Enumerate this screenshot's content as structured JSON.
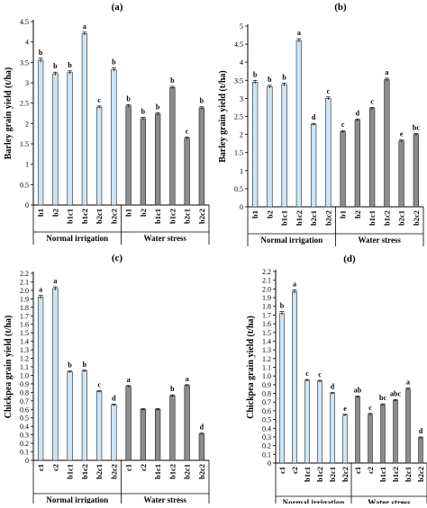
{
  "chart_data": [
    {
      "type": "bar",
      "panel": "(a)",
      "ylabel": "Barley grain yield (t/ha)",
      "ylim": [
        0,
        4.5
      ],
      "yticks": [
        "0",
        "0.5",
        "1",
        "1.5",
        "2",
        "2.5",
        "3",
        "3.5",
        "4",
        "4.5"
      ],
      "categories": [
        "b1",
        "b2",
        "b1c1",
        "b1c2",
        "b2c1",
        "b2c2",
        "b1",
        "b2",
        "b1c1",
        "b1c2",
        "b2c1",
        "b2c2"
      ],
      "values": [
        3.55,
        3.22,
        3.25,
        4.2,
        2.4,
        3.32,
        2.43,
        2.12,
        2.23,
        2.88,
        1.64,
        2.38
      ],
      "errors": [
        0.05,
        0.04,
        0.04,
        0.04,
        0.03,
        0.04,
        0.03,
        0.03,
        0.03,
        0.03,
        0.03,
        0.03
      ],
      "letters": [
        "b",
        "b",
        "b",
        "a",
        "c",
        "b",
        "b",
        "b",
        "b",
        "b",
        "c",
        "b"
      ],
      "groups": [
        "Normal irrigation",
        "Water stress"
      ],
      "colors": {
        "normal": "#cde6f7",
        "stress": "#8c8c8c"
      }
    },
    {
      "type": "bar",
      "panel": "(b)",
      "ylabel": "Barley grain yield (t/ha)",
      "ylim": [
        0,
        5
      ],
      "yticks": [
        "0",
        "0.5",
        "1",
        "1.5",
        "2",
        "2.5",
        "3",
        "3.5",
        "4",
        "4.5",
        "5"
      ],
      "categories": [
        "b1",
        "b2",
        "b1c1",
        "b1c2",
        "b2c1",
        "b2c2",
        "b1",
        "b2",
        "b1c1",
        "b1c2",
        "b2c1",
        "b2c2"
      ],
      "values": [
        3.45,
        3.32,
        3.38,
        4.6,
        2.28,
        3.0,
        2.08,
        2.4,
        2.72,
        3.52,
        1.82,
        2.0
      ],
      "errors": [
        0.05,
        0.04,
        0.04,
        0.05,
        0.03,
        0.04,
        0.03,
        0.03,
        0.03,
        0.04,
        0.03,
        0.03
      ],
      "letters": [
        "b",
        "b",
        "b",
        "a",
        "d",
        "c",
        "c",
        "d",
        "c",
        "a",
        "e",
        "bc"
      ],
      "groups": [
        "Normal irrigation",
        "Water stress"
      ],
      "colors": {
        "normal": "#cde6f7",
        "stress": "#8c8c8c"
      }
    },
    {
      "type": "bar",
      "panel": "(c)",
      "ylabel": "Chickpea grain yield (t/ha)",
      "ylim": [
        0,
        2.2
      ],
      "yticks": [
        "0",
        "0.1",
        "0.2",
        "0.3",
        "0.4",
        "0.5",
        "0.6",
        "0.7",
        "0.8",
        "0.9",
        "1.0",
        "1.1",
        "1.2",
        "1.3",
        "1.4",
        "1.5",
        "1.6",
        "1.7",
        "1.8",
        "1.9",
        "2.0",
        "2.1",
        "2.2"
      ],
      "categories": [
        "c1",
        "c2",
        "b1c1",
        "b1c2",
        "b2c1",
        "b2c2",
        "c1",
        "c2",
        "b1c1",
        "b1c2",
        "b2c1",
        "b2c2"
      ],
      "values": [
        1.92,
        2.02,
        1.04,
        1.05,
        0.81,
        0.65,
        0.87,
        0.6,
        0.6,
        0.76,
        0.88,
        0.31
      ],
      "errors": [
        0.02,
        0.02,
        0.01,
        0.01,
        0.01,
        0.01,
        0.01,
        0.01,
        0.01,
        0.01,
        0.01,
        0.01
      ],
      "letters": [
        "a",
        "a",
        "b",
        "b",
        "c",
        "d",
        "a",
        "",
        "",
        "b",
        "a",
        "d"
      ],
      "groups": [
        "Normal irrigation",
        "Water stress"
      ],
      "colors": {
        "normal": "#cde6f7",
        "stress": "#8c8c8c"
      }
    },
    {
      "type": "bar",
      "panel": "(d)",
      "ylabel": "Chickpea grain yield (t/ha)",
      "ylim": [
        0,
        2.2
      ],
      "yticks": [
        "0",
        "0.1",
        "0.2",
        "0.3",
        "0.4",
        "0.5",
        "0.6",
        "0.7",
        "0.8",
        "0.9",
        "1.0",
        "1.1",
        "1.2",
        "1.3",
        "1.4",
        "1.5",
        "1.6",
        "1.7",
        "1.8",
        "1.9",
        "2.0",
        "2.1",
        "2.2"
      ],
      "categories": [
        "c1",
        "c2",
        "b1c1",
        "b1c2",
        "b2c1",
        "b2c2",
        "c1",
        "c2",
        "b1c1",
        "b1c2",
        "b2c1",
        "b2c2"
      ],
      "values": [
        1.72,
        1.97,
        0.95,
        0.94,
        0.8,
        0.55,
        0.76,
        0.56,
        0.67,
        0.72,
        0.85,
        0.29
      ],
      "errors": [
        0.02,
        0.02,
        0.01,
        0.01,
        0.01,
        0.01,
        0.01,
        0.01,
        0.01,
        0.01,
        0.01,
        0.01
      ],
      "letters": [
        "b",
        "a",
        "c",
        "c",
        "d",
        "e",
        "ab",
        "c",
        "bc",
        "abc",
        "a",
        "d"
      ],
      "groups": [
        "Normal irrigation",
        "Water stress"
      ],
      "colors": {
        "normal": "#cde6f7",
        "stress": "#8c8c8c"
      }
    }
  ]
}
